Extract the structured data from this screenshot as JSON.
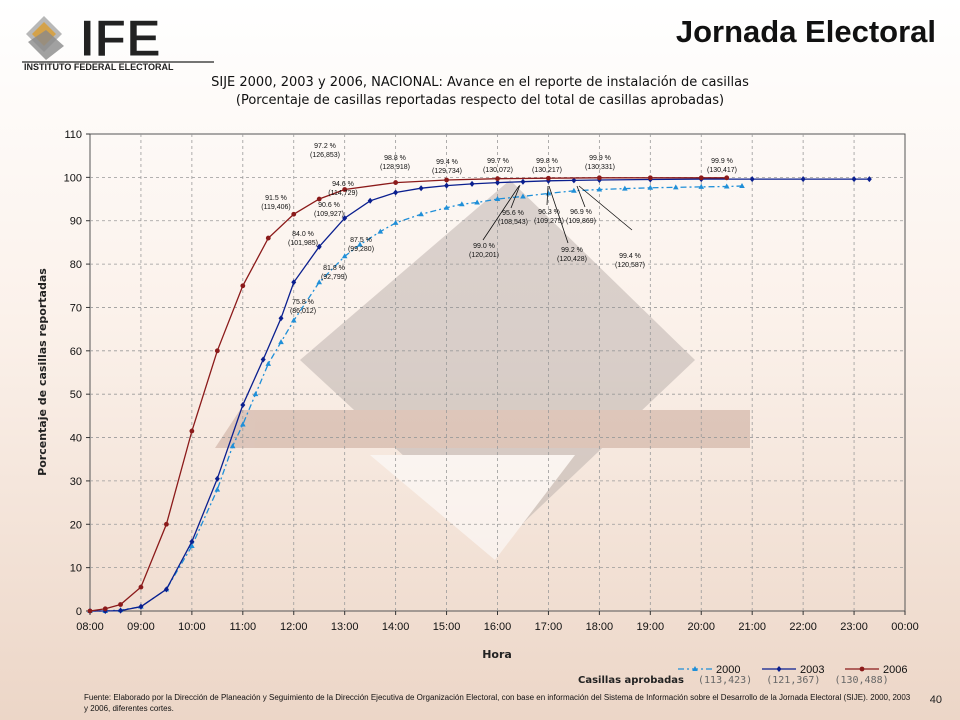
{
  "header": {
    "logo_text": "IFE",
    "logo_subtext": "INSTITUTO FEDERAL ELECTORAL",
    "slide_title": "Jornada Electoral"
  },
  "chart_data": {
    "type": "line",
    "title_line1": "SIJE 2000, 2003 y 2006, NACIONAL: Avance en el reporte de instalación de casillas",
    "title_line2": "(Porcentaje de casillas reportadas respecto del total de casillas aprobadas)",
    "xlabel": "Hora",
    "ylabel": "Porcentaje de casillas reportadas",
    "ylim": [
      0,
      110
    ],
    "yticks": [
      "0",
      "10",
      "20",
      "30",
      "40",
      "50",
      "60",
      "70",
      "80",
      "90",
      "100",
      "110"
    ],
    "xlim": [
      8,
      24
    ],
    "xticks": [
      "08:00",
      "09:00",
      "10:00",
      "11:00",
      "12:00",
      "13:00",
      "14:00",
      "15:00",
      "16:00",
      "17:00",
      "18:00",
      "19:00",
      "20:00",
      "21:00",
      "22:00",
      "23:00",
      "00:00"
    ],
    "grid": true,
    "legend_position": "bottom-right",
    "series": [
      {
        "name": "2000",
        "color": "#1f8fd8",
        "style": "dashdot",
        "marker": "triangle",
        "approved": "(113,423)",
        "points": [
          [
            8,
            0
          ],
          [
            8.3,
            0
          ],
          [
            8.6,
            0.2
          ],
          [
            9,
            1
          ],
          [
            9.5,
            5
          ],
          [
            10,
            15
          ],
          [
            10.5,
            28
          ],
          [
            10.8,
            38
          ],
          [
            11,
            43
          ],
          [
            11.25,
            50
          ],
          [
            11.5,
            57
          ],
          [
            11.75,
            62
          ],
          [
            12,
            67
          ],
          [
            12.5,
            75.8
          ],
          [
            13,
            81.8
          ],
          [
            13.3,
            84.5
          ],
          [
            13.7,
            87.5
          ],
          [
            14,
            89.5
          ],
          [
            14.5,
            91.5
          ],
          [
            15,
            93
          ],
          [
            15.3,
            93.8
          ],
          [
            15.6,
            94.2
          ],
          [
            16,
            95
          ],
          [
            16.5,
            95.6
          ],
          [
            17,
            96.3
          ],
          [
            17.5,
            96.9
          ],
          [
            18,
            97.2
          ],
          [
            18.5,
            97.4
          ],
          [
            19,
            97.6
          ],
          [
            19.5,
            97.7
          ],
          [
            20,
            97.8
          ],
          [
            20.5,
            97.9
          ],
          [
            20.8,
            98
          ]
        ]
      },
      {
        "name": "2003",
        "color": "#0a1f8f",
        "style": "solid",
        "marker": "diamond",
        "approved": "(121,367)",
        "points": [
          [
            8,
            0
          ],
          [
            8.3,
            0
          ],
          [
            8.6,
            0.1
          ],
          [
            9,
            1
          ],
          [
            9.5,
            5
          ],
          [
            10,
            16
          ],
          [
            10.5,
            30.5
          ],
          [
            11,
            47.5
          ],
          [
            11.4,
            58
          ],
          [
            11.75,
            67.5
          ],
          [
            12,
            75.8
          ],
          [
            12.5,
            84
          ],
          [
            13,
            90.6
          ],
          [
            13.5,
            94.6
          ],
          [
            14,
            96.5
          ],
          [
            14.5,
            97.5
          ],
          [
            15,
            98.1
          ],
          [
            15.5,
            98.5
          ],
          [
            16,
            98.8
          ],
          [
            16.5,
            99
          ],
          [
            17,
            99.2
          ],
          [
            17.5,
            99.3
          ],
          [
            18,
            99.4
          ],
          [
            19,
            99.5
          ],
          [
            20,
            99.6
          ],
          [
            21,
            99.6
          ],
          [
            22,
            99.6
          ],
          [
            23,
            99.6
          ],
          [
            23.3,
            99.6
          ]
        ]
      },
      {
        "name": "2006",
        "color": "#8b1a1a",
        "style": "solid",
        "marker": "circle",
        "approved": "(130,488)",
        "points": [
          [
            8,
            0
          ],
          [
            8.3,
            0.5
          ],
          [
            8.6,
            1.5
          ],
          [
            9,
            5.5
          ],
          [
            9.5,
            20
          ],
          [
            10,
            41.5
          ],
          [
            10.5,
            60
          ],
          [
            11,
            75
          ],
          [
            11.5,
            86
          ],
          [
            12,
            91.5
          ],
          [
            12.5,
            95
          ],
          [
            13,
            97.2
          ],
          [
            14,
            98.8
          ],
          [
            15,
            99.4
          ],
          [
            16,
            99.7
          ],
          [
            17,
            99.8
          ],
          [
            18,
            99.9
          ],
          [
            19,
            99.9
          ],
          [
            20,
            99.9
          ],
          [
            20.5,
            99.9
          ]
        ]
      }
    ],
    "annotations": [
      {
        "pct": "97.2 %",
        "count": "(126,853)"
      },
      {
        "pct": "98.8 %",
        "count": "(128,918)"
      },
      {
        "pct": "99.4 %",
        "count": "(129,734)"
      },
      {
        "pct": "99.7 %",
        "count": "(130,072)"
      },
      {
        "pct": "99.8 %",
        "count": "(130,217)"
      },
      {
        "pct": "99.9 %",
        "count": "(130,331)"
      },
      {
        "pct": "99.9 %",
        "count": "(130,417)"
      },
      {
        "pct": "91.5 %",
        "count": "(119,406)"
      },
      {
        "pct": "94.6 %",
        "count": "(114,729)"
      },
      {
        "pct": "90.6 %",
        "count": "(109,927)"
      },
      {
        "pct": "84.0 %",
        "count": "(101,985)"
      },
      {
        "pct": "87.5 %",
        "count": "(99,280)"
      },
      {
        "pct": "81.8 %",
        "count": "(92,799)"
      },
      {
        "pct": "75.8 %",
        "count": "(86,012)"
      },
      {
        "pct": "95.6 %",
        "count": "(108,543)"
      },
      {
        "pct": "96.3 %",
        "count": "(109,275)"
      },
      {
        "pct": "96.9 %",
        "count": "(109,869)"
      },
      {
        "pct": "99.0 %",
        "count": "(120,201)"
      },
      {
        "pct": "99.2 %",
        "count": "(120,428)"
      },
      {
        "pct": "99.4 %",
        "count": "(120,587)"
      }
    ]
  },
  "legend": {
    "caption": "Casillas aprobadas"
  },
  "footer": {
    "source": "Fuente: Elaborado por la Dirección de Planeación y Seguimiento de la Dirección Ejecutiva de Organización Electoral, con base en información del Sistema de Información sobre el Desarrollo de la Jornada Electoral (SIJE). 2000, 2003 y 2006, diferentes cortes.",
    "page_number": "40"
  }
}
